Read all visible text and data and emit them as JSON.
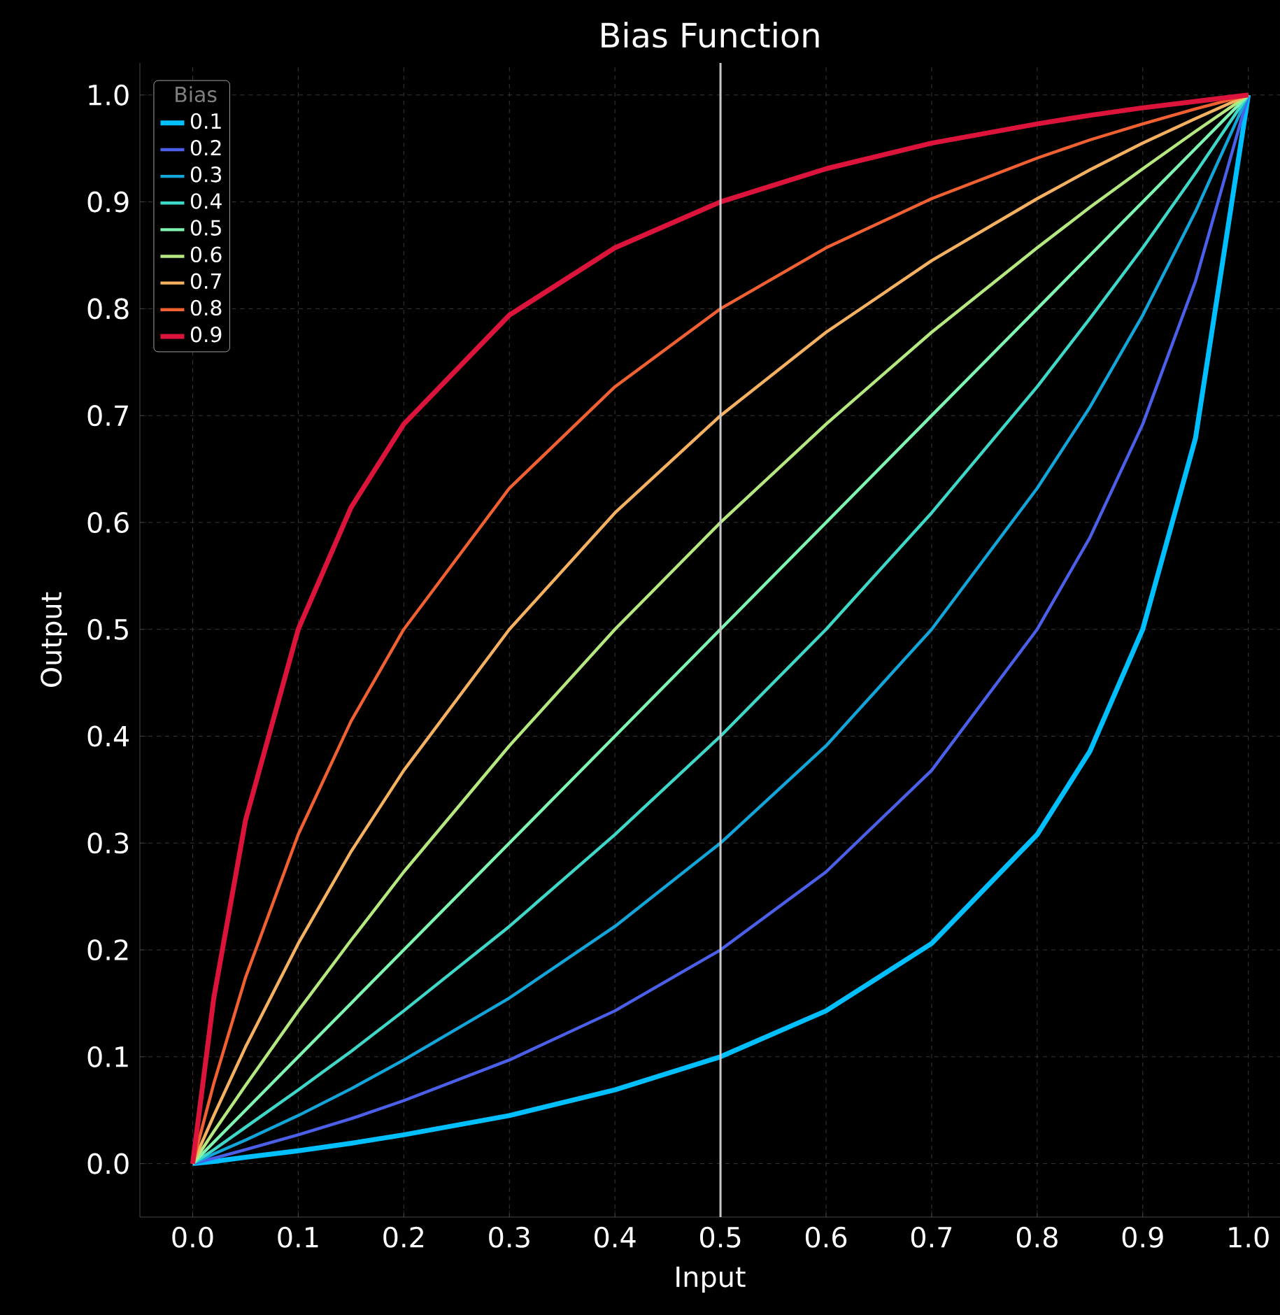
{
  "chart_data": {
    "type": "line",
    "title": "Bias Function",
    "xlabel": "Input",
    "ylabel": "Output",
    "legend_title": "Bias",
    "x": [
      0,
      0.02,
      0.05,
      0.1,
      0.15,
      0.2,
      0.3,
      0.4,
      0.5,
      0.6,
      0.7,
      0.8,
      0.85,
      0.9,
      0.95,
      1
    ],
    "series": [
      {
        "name": "0.1",
        "color": "#00bfff",
        "values": [
          0,
          0.002,
          0.006,
          0.012,
          0.019,
          0.027,
          0.045,
          0.069,
          0.1,
          0.143,
          0.206,
          0.308,
          0.386,
          0.5,
          0.679,
          1
        ]
      },
      {
        "name": "0.2",
        "color": "#4b5fe8",
        "values": [
          0,
          0.005,
          0.013,
          0.027,
          0.042,
          0.059,
          0.097,
          0.143,
          0.2,
          0.273,
          0.368,
          0.5,
          0.586,
          0.692,
          0.826,
          1
        ]
      },
      {
        "name": "0.3",
        "color": "#12a5d9",
        "values": [
          0,
          0.009,
          0.022,
          0.045,
          0.07,
          0.097,
          0.155,
          0.222,
          0.3,
          0.391,
          0.5,
          0.632,
          0.708,
          0.794,
          0.891,
          1
        ]
      },
      {
        "name": "0.4",
        "color": "#3ed8c8",
        "values": [
          0,
          0.013,
          0.034,
          0.069,
          0.105,
          0.143,
          0.222,
          0.308,
          0.4,
          0.5,
          0.609,
          0.727,
          0.791,
          0.857,
          0.927,
          1
        ]
      },
      {
        "name": "0.5",
        "color": "#7ef5b0",
        "values": [
          0,
          0.02,
          0.05,
          0.1,
          0.15,
          0.2,
          0.3,
          0.4,
          0.5,
          0.6,
          0.7,
          0.8,
          0.85,
          0.9,
          0.95,
          1
        ]
      },
      {
        "name": "0.6",
        "color": "#b5e87f",
        "values": [
          0,
          0.03,
          0.073,
          0.143,
          0.209,
          0.273,
          0.391,
          0.5,
          0.6,
          0.692,
          0.778,
          0.857,
          0.895,
          0.931,
          0.966,
          1
        ]
      },
      {
        "name": "0.7",
        "color": "#f5b160",
        "values": [
          0,
          0.045,
          0.109,
          0.206,
          0.292,
          0.368,
          0.5,
          0.609,
          0.7,
          0.778,
          0.845,
          0.903,
          0.93,
          0.955,
          0.978,
          1
        ]
      },
      {
        "name": "0.8",
        "color": "#f06030",
        "values": [
          0,
          0.075,
          0.174,
          0.308,
          0.414,
          0.5,
          0.632,
          0.727,
          0.8,
          0.857,
          0.903,
          0.941,
          0.958,
          0.973,
          0.987,
          1
        ]
      },
      {
        "name": "0.9",
        "color": "#dc143c",
        "values": [
          0,
          0.155,
          0.321,
          0.5,
          0.614,
          0.692,
          0.794,
          0.857,
          0.9,
          0.931,
          0.955,
          0.973,
          0.981,
          0.988,
          0.994,
          1
        ]
      }
    ],
    "xlim": [
      -0.05,
      1.03
    ],
    "ylim": [
      -0.05,
      1.03
    ],
    "xticks": [
      {
        "value": 0,
        "label": "0.0"
      },
      0.1,
      0.2,
      0.3,
      0.4,
      0.5,
      0.6,
      0.7,
      0.8,
      0.9,
      {
        "value": 1,
        "label": "1.0"
      }
    ],
    "yticks": [
      {
        "value": 0,
        "label": "0.0"
      },
      0.1,
      0.2,
      0.3,
      0.4,
      0.5,
      0.6,
      0.7,
      0.8,
      0.9,
      {
        "value": 1,
        "label": "1.0"
      }
    ],
    "ref_lines": [
      {
        "axis": "x",
        "value": 0.5,
        "color": "#c8c8c8"
      }
    ],
    "grid": true,
    "legend": "top left",
    "line_style": "solid"
  }
}
